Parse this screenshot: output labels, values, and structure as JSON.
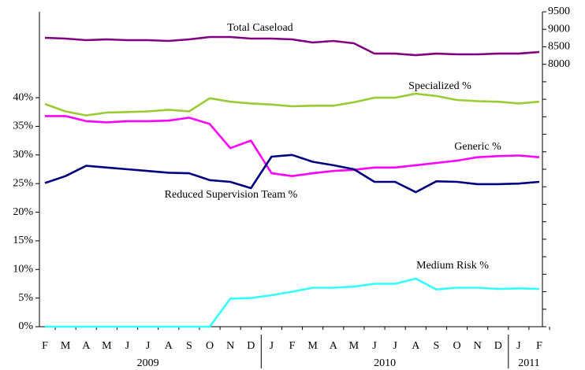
{
  "chart_data": {
    "type": "line",
    "categories": [
      "F",
      "M",
      "A",
      "M",
      "J",
      "J",
      "A",
      "S",
      "O",
      "N",
      "D",
      "J",
      "F",
      "M",
      "A",
      "M",
      "J",
      "J",
      "A",
      "S",
      "O",
      "N",
      "D",
      "J",
      "F"
    ],
    "years": [
      "2009",
      "2010",
      "2011"
    ],
    "ylim": [
      0,
      55
    ],
    "yticks": [
      {
        "value": 0,
        "label": "0%"
      },
      {
        "value": 5,
        "label": "5%"
      },
      {
        "value": 10,
        "label": "10%"
      },
      {
        "value": 15,
        "label": "15%"
      },
      {
        "value": 20,
        "label": "20%"
      },
      {
        "value": 25,
        "label": "25%"
      },
      {
        "value": 30,
        "label": "30%"
      },
      {
        "value": 35,
        "label": "35%"
      },
      {
        "value": 40,
        "label": "40%"
      }
    ],
    "y2lim": [
      500,
      9500
    ],
    "y2ticks": [
      8000,
      8500,
      9000,
      9500
    ],
    "series": [
      {
        "name": "Total Caseload",
        "color": "#800080",
        "axis": "y2",
        "values": [
          8757,
          8734,
          8689,
          8712,
          8689,
          8689,
          8667,
          8712,
          8779,
          8779,
          8734,
          8734,
          8712,
          8622,
          8667,
          8599,
          8306,
          8306,
          8261,
          8306,
          8284,
          8284,
          8306,
          8306,
          8351
        ]
      },
      {
        "name": "Specialized %",
        "color": "#99cc33",
        "values": [
          38.9,
          37.6,
          36.9,
          37.4,
          37.5,
          37.6,
          37.9,
          37.6,
          39.9,
          39.3,
          39.0,
          38.8,
          38.5,
          38.6,
          38.6,
          39.2,
          40.0,
          40.0,
          40.7,
          40.3,
          39.6,
          39.4,
          39.3,
          39.0,
          39.3
        ]
      },
      {
        "name": "Generic %",
        "color": "#ff00ff",
        "values": [
          36.8,
          36.8,
          35.9,
          35.7,
          35.9,
          35.9,
          36.0,
          36.5,
          35.4,
          31.2,
          32.5,
          26.8,
          26.3,
          26.8,
          27.2,
          27.4,
          27.8,
          27.8,
          28.2,
          28.6,
          29.0,
          29.6,
          29.8,
          29.9,
          29.6
        ]
      },
      {
        "name": "Reduced Supervision Team %",
        "color": "#000080",
        "values": [
          25.1,
          26.3,
          28.1,
          27.8,
          27.5,
          27.2,
          26.9,
          26.8,
          25.6,
          25.3,
          24.2,
          29.7,
          30.0,
          28.8,
          28.2,
          27.5,
          25.3,
          25.3,
          23.5,
          25.4,
          25.3,
          24.9,
          24.9,
          25.0,
          25.3
        ]
      },
      {
        "name": "Medium Risk %",
        "color": "#33ffff",
        "values": [
          0,
          0,
          0,
          0,
          0,
          0,
          0,
          0,
          0,
          4.9,
          5.0,
          5.5,
          6.1,
          6.8,
          6.8,
          7.0,
          7.5,
          7.5,
          8.4,
          6.5,
          6.8,
          6.8,
          6.6,
          6.7,
          6.6
        ]
      }
    ]
  }
}
